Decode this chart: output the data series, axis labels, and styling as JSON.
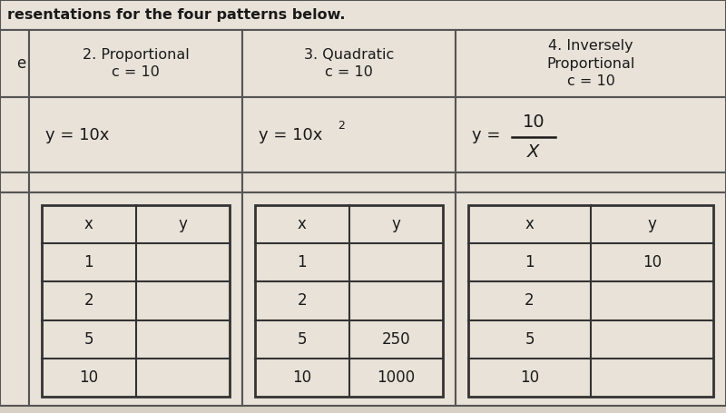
{
  "title_text": "resentations for the four patterns below.",
  "bg_color": "#d8d0c4",
  "cell_color": "#e8e2d8",
  "white_cell": "#f0ece4",
  "border_color": "#555555",
  "text_color": "#1a1a1a",
  "col1_header_line1": "2. Proportional",
  "col1_header_line2": "c = 10",
  "col2_header_line1": "3. Quadratic",
  "col2_header_line2": "c = 10",
  "col3_header_line1": "4. Inversely",
  "col3_header_line2": "Proportional",
  "col3_header_line3": "c = 10",
  "col1_formula": "y = 10x",
  "col2_formula_base": "y = 10x",
  "col2_formula_sup": "2",
  "left_label": "e",
  "table1_data": [
    [
      "x",
      "y"
    ],
    [
      "1",
      ""
    ],
    [
      "2",
      ""
    ],
    [
      "5",
      ""
    ],
    [
      "10",
      ""
    ]
  ],
  "table2_data": [
    [
      "x",
      "y"
    ],
    [
      "1",
      ""
    ],
    [
      "2",
      ""
    ],
    [
      "5",
      "250"
    ],
    [
      "10",
      "1000"
    ]
  ],
  "table3_data": [
    [
      "x",
      "y"
    ],
    [
      "1",
      "10"
    ],
    [
      "2",
      ""
    ],
    [
      "5",
      ""
    ],
    [
      "10",
      ""
    ]
  ],
  "fig_width": 8.0,
  "fig_height": 4.55
}
